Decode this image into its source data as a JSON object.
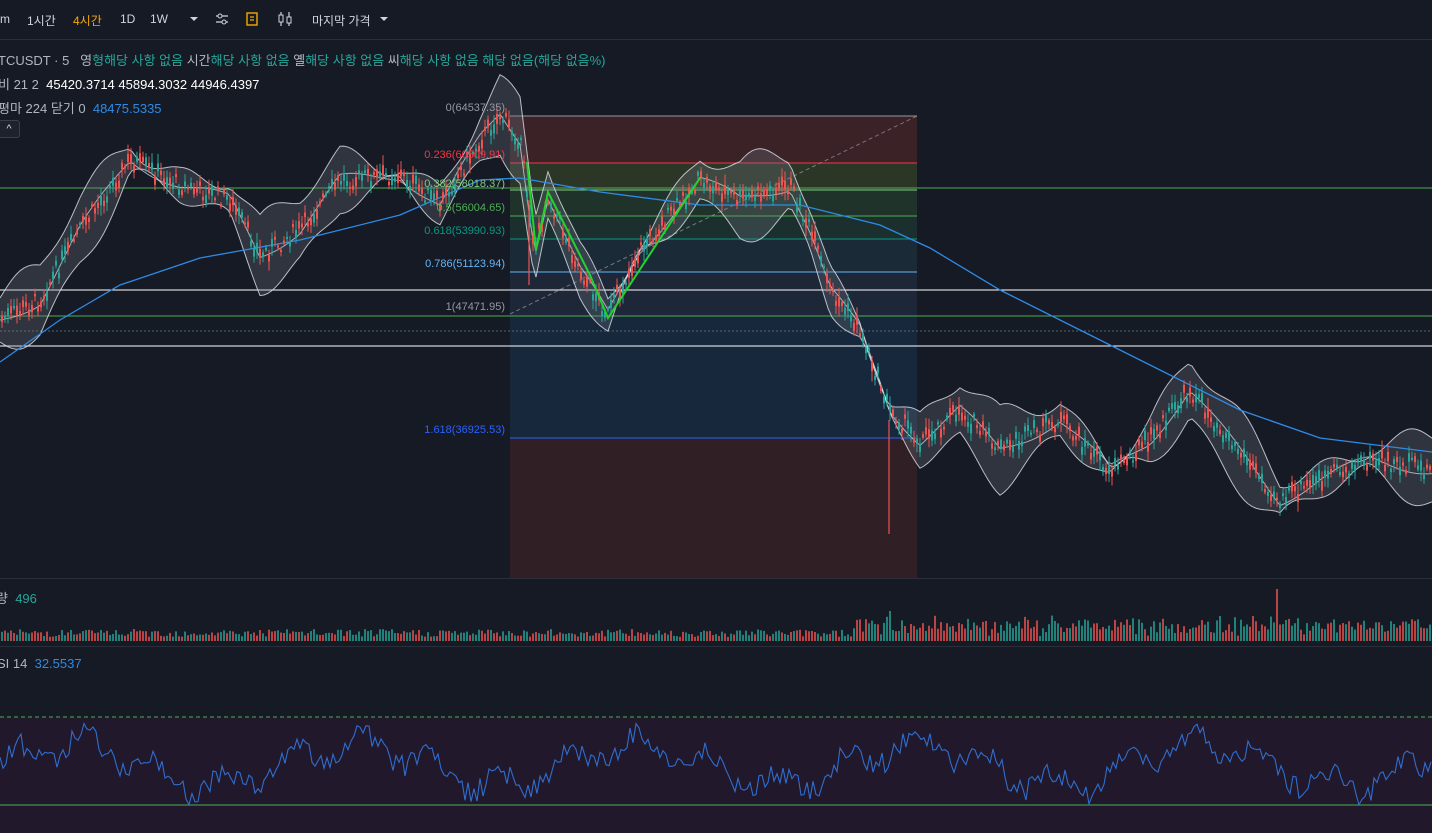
{
  "toolbar": {
    "intervals": [
      "m",
      "1시간",
      "4시간",
      "1D",
      "1W"
    ],
    "active_interval": "4시간",
    "price_type": "마지막 가격"
  },
  "legend": {
    "symbol": "TCUSDT",
    "sep": "·",
    "interval": "5",
    "ohlc_text": [
      {
        "label": "영",
        "value": "형해당 사항 없음"
      },
      {
        "label": "시간",
        "value": "해당 사항 없음"
      },
      {
        "label": "옐",
        "value": "해당 사항 없음"
      },
      {
        "label": "씨",
        "value": "해당 사항 없음"
      },
      {
        "label": "",
        "value": "해당 없음(해당 없음%)"
      }
    ],
    "bb": {
      "label": "비 21 2",
      "values": [
        "45420.3714",
        "45894.3032",
        "44946.4397"
      ]
    },
    "ma": {
      "label": "평마 224 닫기 0",
      "value": "48475.5335"
    },
    "collapse_symbol": "^"
  },
  "fib": {
    "levels": [
      {
        "ratio": "0",
        "label": "0(64537.35)",
        "color": "#9598a1"
      },
      {
        "ratio": "0.236",
        "label": "0.236(60509.91)",
        "color": "#f23645"
      },
      {
        "ratio": "0.382",
        "label": "0.382(58018.37)",
        "color": "#81c784"
      },
      {
        "ratio": "0.5",
        "label": "0.5(56004.65)",
        "color": "#4caf50"
      },
      {
        "ratio": "0.618",
        "label": "0.618(53990.93)",
        "color": "#089981"
      },
      {
        "ratio": "0.786",
        "label": "0.786(51123.94)",
        "color": "#64b5f6"
      },
      {
        "ratio": "1",
        "label": "1(47471.95)",
        "color": "#9598a1"
      },
      {
        "ratio": "1.618",
        "label": "1.618(36925.53)",
        "color": "#2962ff"
      }
    ]
  },
  "volume": {
    "label": "량",
    "value": "496"
  },
  "rsi": {
    "label": "SI 14",
    "value": "32.5537"
  },
  "colors": {
    "bg": "#161a25",
    "up": "#26a69a",
    "down": "#ef5350",
    "ma_line": "#2f8ae5",
    "bb_band": "#e0e3eb",
    "hline_green": "#4caf50",
    "hline_white": "#ffffff",
    "pattern": "#22d32a",
    "rsi_line": "#2f6ecf",
    "rsi_bg": "#21182c"
  },
  "icons": [
    "chevron-down-icon",
    "indicator-settings-icon",
    "bar-replay-icon",
    "candle-style-icon",
    "chevron-down-icon"
  ]
}
